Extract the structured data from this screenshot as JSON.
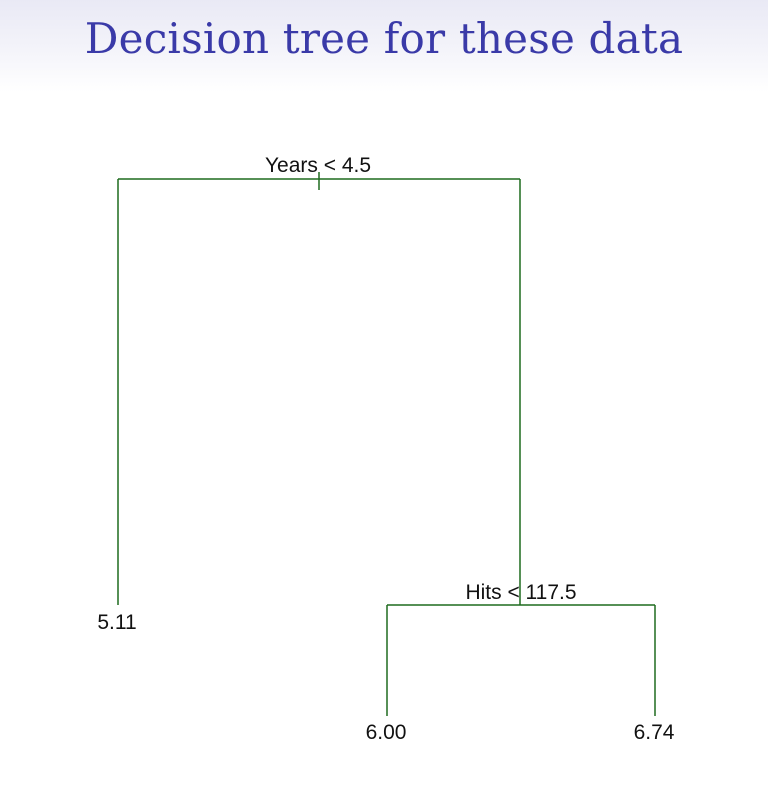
{
  "title": "Decision tree for these data",
  "colors": {
    "title": "#3a3aa8",
    "branch": "#1f6b1f",
    "label": "#111111"
  },
  "tree": {
    "root_split": "Years < 4.5",
    "right_split": "Hits < 117.5",
    "leaves": {
      "left": "5.11",
      "right_left": "6.00",
      "right_right": "6.74"
    }
  }
}
